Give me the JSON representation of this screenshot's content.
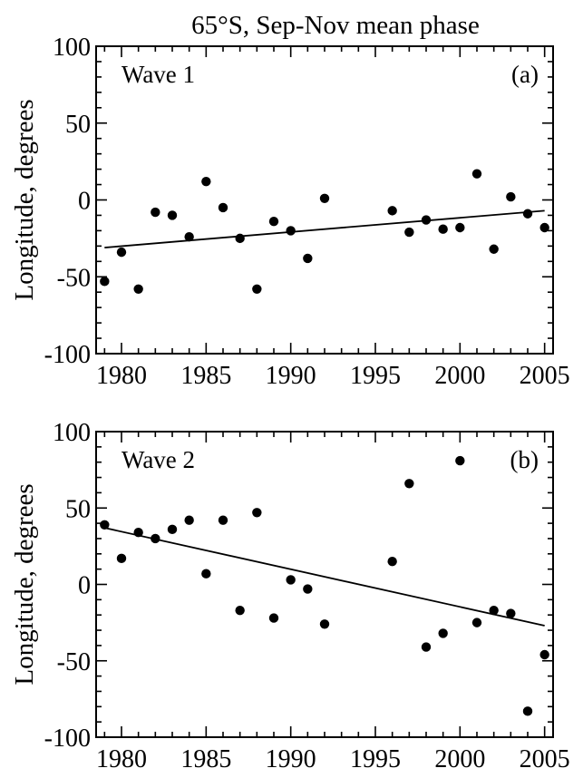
{
  "title": "65°S, Sep-Nov mean phase",
  "chart_data": [
    {
      "type": "scatter",
      "panel_tag": "(a)",
      "label": "Wave 1",
      "ylabel": "Longitude, degrees",
      "xlim": [
        1978.5,
        2005.5
      ],
      "ylim": [
        -100,
        100
      ],
      "xticks": [
        1980,
        1985,
        1990,
        1995,
        2000,
        2005
      ],
      "yticks": [
        -100,
        -50,
        0,
        50,
        100
      ],
      "x": [
        1979,
        1980,
        1981,
        1982,
        1983,
        1984,
        1985,
        1986,
        1987,
        1988,
        1989,
        1990,
        1991,
        1992,
        1996,
        1997,
        1998,
        1999,
        2000,
        2001,
        2002,
        2003,
        2004,
        2005
      ],
      "y": [
        -53,
        -34,
        -58,
        -8,
        -10,
        -24,
        12,
        -5,
        -25,
        -58,
        -14,
        -20,
        -38,
        1,
        -7,
        -21,
        -13,
        -19,
        -18,
        17,
        -32,
        2,
        -9,
        -18
      ],
      "trend": {
        "x": [
          1979,
          2005
        ],
        "y": [
          -31,
          -7
        ]
      }
    },
    {
      "type": "scatter",
      "panel_tag": "(b)",
      "label": "Wave 2",
      "ylabel": "Longitude, degrees",
      "xlim": [
        1978.5,
        2005.5
      ],
      "ylim": [
        -100,
        100
      ],
      "xticks": [
        1980,
        1985,
        1990,
        1995,
        2000,
        2005
      ],
      "yticks": [
        -100,
        -50,
        0,
        50,
        100
      ],
      "x": [
        1979,
        1980,
        1981,
        1982,
        1983,
        1984,
        1985,
        1986,
        1987,
        1988,
        1989,
        1990,
        1991,
        1992,
        1996,
        1997,
        1998,
        1999,
        2000,
        2001,
        2002,
        2003,
        2004,
        2005
      ],
      "y": [
        39,
        17,
        34,
        30,
        36,
        42,
        7,
        42,
        -17,
        47,
        -22,
        3,
        -3,
        -26,
        15,
        66,
        -41,
        -32,
        81,
        -25,
        -17,
        -19,
        -83,
        -46
      ],
      "trend": {
        "x": [
          1979,
          2005
        ],
        "y": [
          37,
          -27
        ]
      }
    }
  ]
}
